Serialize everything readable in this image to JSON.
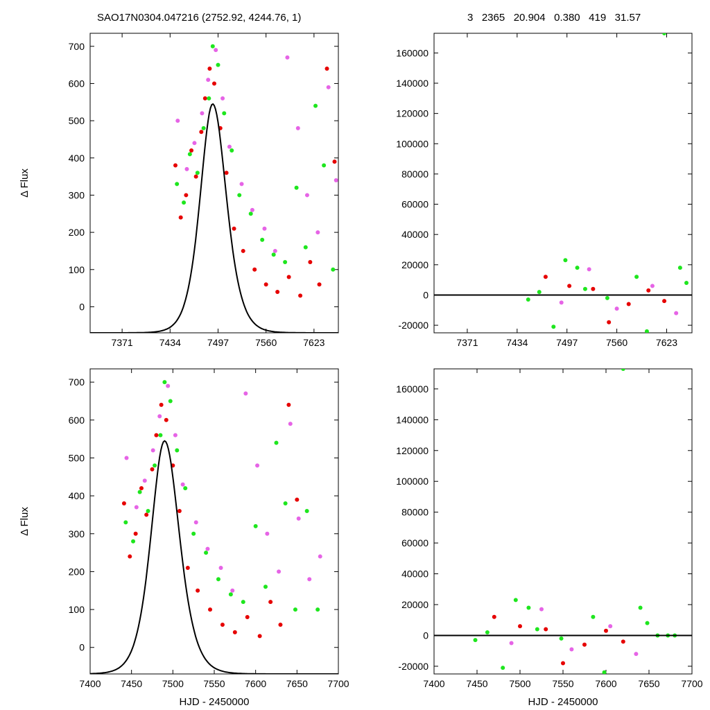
{
  "header": {
    "left": "SAO17N0304.047216 (2752.92, 4244.76,    1)",
    "right": "3   2365   20.904   0.380   419   31.57"
  },
  "colors": {
    "red": "#e60000",
    "green": "#1ee61e",
    "pink": "#e664e6",
    "curve": "#000000"
  },
  "chart_data": [
    {
      "id": "top-left",
      "type": "scatter",
      "ylabel": "Δ Flux",
      "xlabel": "",
      "xlim": [
        7329,
        7655
      ],
      "ylim": [
        -70,
        735
      ],
      "xticks": [
        7371,
        7434,
        7497,
        7560,
        7623
      ],
      "yticks": [
        0,
        100,
        200,
        300,
        400,
        500,
        600,
        700
      ],
      "model": {
        "peak_x": 7490,
        "peak_y": 545,
        "baseline": -70,
        "rise_width": 22,
        "decay_width": 24
      },
      "series": [
        {
          "color": "red",
          "x": [
            7441,
            7448,
            7455,
            7462,
            7468,
            7475,
            7480,
            7486,
            7492,
            7500,
            7508,
            7518,
            7530,
            7545,
            7560,
            7575,
            7590,
            7605,
            7618,
            7630,
            7640,
            7650
          ],
          "y": [
            380,
            240,
            300,
            420,
            350,
            470,
            560,
            640,
            600,
            480,
            360,
            210,
            150,
            100,
            60,
            40,
            80,
            30,
            120,
            60,
            640,
            390
          ]
        },
        {
          "color": "green",
          "x": [
            7443,
            7452,
            7460,
            7470,
            7478,
            7485,
            7490,
            7497,
            7505,
            7515,
            7525,
            7540,
            7555,
            7570,
            7585,
            7600,
            7612,
            7625,
            7636,
            7648
          ],
          "y": [
            330,
            280,
            410,
            360,
            480,
            560,
            700,
            650,
            520,
            420,
            300,
            250,
            180,
            140,
            120,
            320,
            160,
            540,
            380,
            100
          ]
        },
        {
          "color": "pink",
          "x": [
            7444,
            7456,
            7466,
            7476,
            7484,
            7494,
            7503,
            7512,
            7528,
            7542,
            7558,
            7572,
            7588,
            7602,
            7614,
            7628,
            7642,
            7652
          ],
          "y": [
            500,
            370,
            440,
            520,
            610,
            690,
            560,
            430,
            330,
            260,
            210,
            150,
            670,
            480,
            300,
            200,
            590,
            340
          ]
        }
      ]
    },
    {
      "id": "top-right",
      "type": "scatter",
      "ylabel": "",
      "xlabel": "",
      "xlim": [
        7329,
        7655
      ],
      "ylim": [
        -25000,
        173000
      ],
      "xticks": [
        7371,
        7434,
        7497,
        7560,
        7623
      ],
      "yticks": [
        -20000,
        0,
        20000,
        40000,
        60000,
        80000,
        100000,
        120000,
        140000,
        160000
      ],
      "series": [
        {
          "color": "red",
          "x": [
            7470,
            7500,
            7530,
            7550,
            7575,
            7600,
            7620
          ],
          "y": [
            12000,
            6000,
            4000,
            -18000,
            -6000,
            3000,
            -4000
          ]
        },
        {
          "color": "green",
          "x": [
            7448,
            7462,
            7480,
            7495,
            7510,
            7520,
            7548,
            7585,
            7598,
            7620,
            7640,
            7648
          ],
          "y": [
            -3000,
            2000,
            -21000,
            23000,
            18000,
            4000,
            -2000,
            12000,
            -24000,
            173000,
            18000,
            8000
          ]
        },
        {
          "color": "pink",
          "x": [
            7490,
            7525,
            7560,
            7605,
            7635
          ],
          "y": [
            -5000,
            17000,
            -9000,
            6000,
            -12000
          ]
        }
      ]
    },
    {
      "id": "bottom-left",
      "type": "scatter",
      "ylabel": "Δ Flux",
      "xlabel": "HJD - 2450000",
      "xlim": [
        7400,
        7700
      ],
      "ylim": [
        -70,
        735
      ],
      "xticks": [
        7400,
        7450,
        7500,
        7550,
        7600,
        7650,
        7700
      ],
      "yticks": [
        0,
        100,
        200,
        300,
        400,
        500,
        600,
        700
      ],
      "model": {
        "peak_x": 7490,
        "peak_y": 545,
        "baseline": -70,
        "rise_width": 22,
        "decay_width": 24
      },
      "series": [
        {
          "color": "red",
          "x": [
            7441,
            7448,
            7455,
            7462,
            7468,
            7475,
            7480,
            7486,
            7492,
            7500,
            7508,
            7518,
            7530,
            7545,
            7560,
            7575,
            7590,
            7605,
            7618,
            7630,
            7640,
            7650
          ],
          "y": [
            380,
            240,
            300,
            420,
            350,
            470,
            560,
            640,
            600,
            480,
            360,
            210,
            150,
            100,
            60,
            40,
            80,
            30,
            120,
            60,
            640,
            390
          ]
        },
        {
          "color": "green",
          "x": [
            7443,
            7452,
            7460,
            7470,
            7478,
            7485,
            7490,
            7497,
            7505,
            7515,
            7525,
            7540,
            7555,
            7570,
            7585,
            7600,
            7612,
            7625,
            7636,
            7648,
            7662,
            7675
          ],
          "y": [
            330,
            280,
            410,
            360,
            480,
            560,
            700,
            650,
            520,
            420,
            300,
            250,
            180,
            140,
            120,
            320,
            160,
            540,
            380,
            100,
            360,
            100
          ]
        },
        {
          "color": "pink",
          "x": [
            7444,
            7456,
            7466,
            7476,
            7484,
            7494,
            7503,
            7512,
            7528,
            7542,
            7558,
            7572,
            7588,
            7602,
            7614,
            7628,
            7642,
            7652,
            7665,
            7678
          ],
          "y": [
            500,
            370,
            440,
            520,
            610,
            690,
            560,
            430,
            330,
            260,
            210,
            150,
            670,
            480,
            300,
            200,
            590,
            340,
            180,
            240
          ]
        }
      ]
    },
    {
      "id": "bottom-right",
      "type": "scatter",
      "ylabel": "",
      "xlabel": "HJD - 2450000",
      "xlim": [
        7400,
        7700
      ],
      "ylim": [
        -25000,
        173000
      ],
      "xticks": [
        7400,
        7450,
        7500,
        7550,
        7600,
        7650,
        7700
      ],
      "yticks": [
        -20000,
        0,
        20000,
        40000,
        60000,
        80000,
        100000,
        120000,
        140000,
        160000
      ],
      "series": [
        {
          "color": "red",
          "x": [
            7470,
            7500,
            7530,
            7550,
            7575,
            7600,
            7620
          ],
          "y": [
            12000,
            6000,
            4000,
            -18000,
            -6000,
            3000,
            -4000
          ]
        },
        {
          "color": "green",
          "x": [
            7448,
            7462,
            7480,
            7495,
            7510,
            7520,
            7548,
            7585,
            7598,
            7620,
            7640,
            7648,
            7660,
            7672,
            7680
          ],
          "y": [
            -3000,
            2000,
            -21000,
            23000,
            18000,
            4000,
            -2000,
            12000,
            -24000,
            173000,
            18000,
            8000,
            0,
            0,
            0
          ]
        },
        {
          "color": "pink",
          "x": [
            7490,
            7525,
            7560,
            7605,
            7635
          ],
          "y": [
            -5000,
            17000,
            -9000,
            6000,
            -12000
          ]
        }
      ]
    }
  ]
}
